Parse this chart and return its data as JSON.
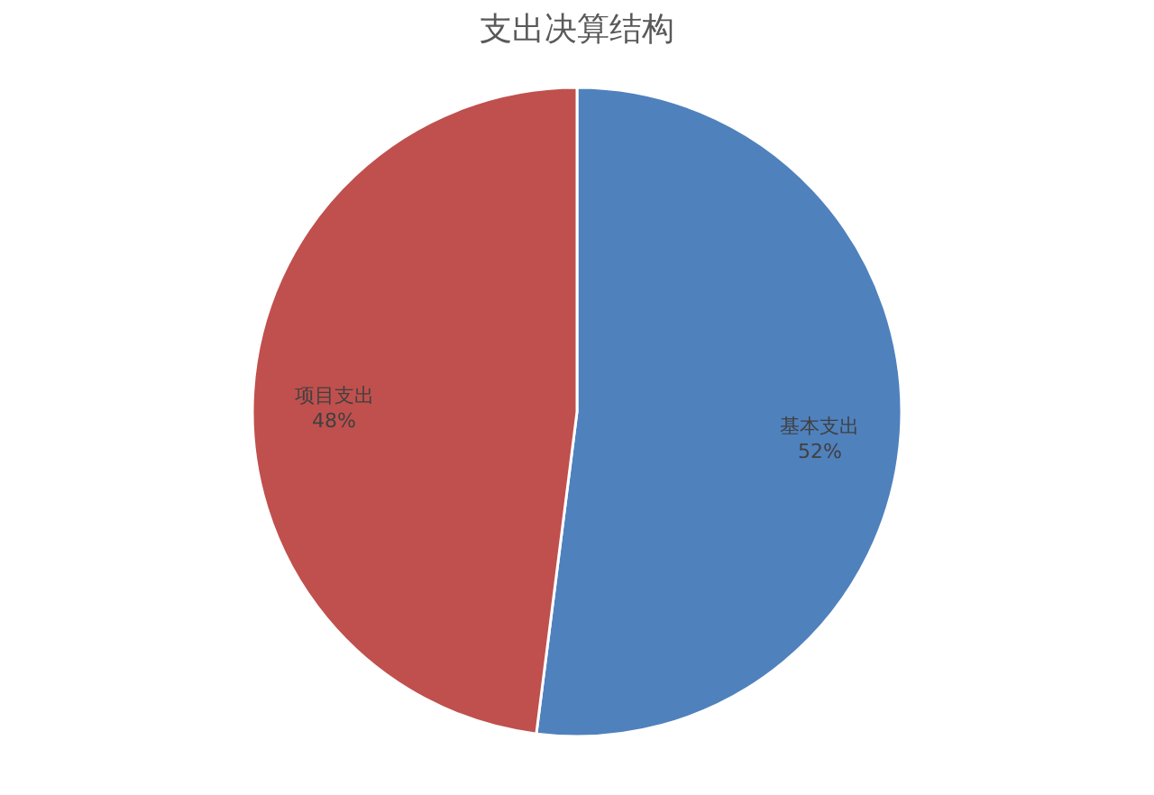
{
  "chart_data": {
    "type": "pie",
    "title": "支出决算结构",
    "categories": [
      "基本支出",
      "项目支出"
    ],
    "values": [
      52,
      48
    ],
    "colors": [
      "#4f81bd",
      "#c0504d"
    ],
    "value_labels": [
      "52%",
      "48%"
    ],
    "legend": false
  }
}
